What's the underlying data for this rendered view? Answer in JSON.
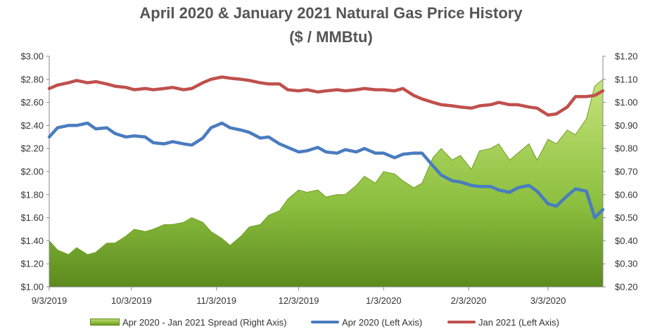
{
  "chart_data": {
    "type": "line",
    "title": "April 2020 & January 2021 Natural Gas Price History",
    "subtitle": "($ / MMBtu)",
    "x_type": "date",
    "x_tick_labels": [
      "9/3/2019",
      "10/3/2019",
      "11/3/2019",
      "12/3/2019",
      "1/3/2020",
      "2/3/2020",
      "3/3/2020"
    ],
    "x_tick_dates": [
      "2019-09-03",
      "2019-10-03",
      "2019-11-03",
      "2019-12-03",
      "2020-01-03",
      "2020-02-03",
      "2020-03-03"
    ],
    "xlim": [
      "2019-09-03",
      "2020-03-23"
    ],
    "left_axis": {
      "ylim": [
        1.0,
        3.0
      ],
      "tick_labels": [
        "$1.00",
        "$1.20",
        "$1.40",
        "$1.60",
        "$1.80",
        "$2.00",
        "$2.20",
        "$2.40",
        "$2.60",
        "$2.80",
        "$3.00"
      ],
      "tick_values": [
        1.0,
        1.2,
        1.4,
        1.6,
        1.8,
        2.0,
        2.2,
        2.4,
        2.6,
        2.8,
        3.0
      ]
    },
    "right_axis": {
      "ylim": [
        0.2,
        1.2
      ],
      "tick_labels": [
        "$0.20",
        "$0.30",
        "$0.40",
        "$0.50",
        "$0.60",
        "$0.70",
        "$0.80",
        "$0.90",
        "$1.00",
        "$1.10",
        "$1.20"
      ],
      "tick_values": [
        0.2,
        0.3,
        0.4,
        0.5,
        0.6,
        0.7,
        0.8,
        0.9,
        1.0,
        1.1,
        1.2
      ]
    },
    "grid": false,
    "legend_position": "bottom",
    "series": [
      {
        "name": "Apr 2020 - Jan 2021 Spread (Right Axis)",
        "type": "area",
        "axis": "right",
        "color": "#8cbf3f",
        "x": [
          "2019-09-03",
          "2019-09-06",
          "2019-09-10",
          "2019-09-13",
          "2019-09-17",
          "2019-09-20",
          "2019-09-24",
          "2019-09-27",
          "2019-10-01",
          "2019-10-04",
          "2019-10-08",
          "2019-10-11",
          "2019-10-15",
          "2019-10-18",
          "2019-10-22",
          "2019-10-25",
          "2019-10-29",
          "2019-11-01",
          "2019-11-05",
          "2019-11-08",
          "2019-11-12",
          "2019-11-15",
          "2019-11-19",
          "2019-11-22",
          "2019-11-26",
          "2019-11-29",
          "2019-12-03",
          "2019-12-06",
          "2019-12-10",
          "2019-12-13",
          "2019-12-17",
          "2019-12-20",
          "2019-12-24",
          "2019-12-27",
          "2019-12-31",
          "2020-01-03",
          "2020-01-07",
          "2020-01-10",
          "2020-01-14",
          "2020-01-17",
          "2020-01-21",
          "2020-01-24",
          "2020-01-28",
          "2020-01-31",
          "2020-02-04",
          "2020-02-07",
          "2020-02-11",
          "2020-02-14",
          "2020-02-18",
          "2020-02-21",
          "2020-02-25",
          "2020-02-28",
          "2020-03-03",
          "2020-03-06",
          "2020-03-10",
          "2020-03-13",
          "2020-03-17",
          "2020-03-20",
          "2020-03-23"
        ],
        "values": [
          0.4,
          0.36,
          0.34,
          0.37,
          0.34,
          0.35,
          0.39,
          0.39,
          0.42,
          0.45,
          0.44,
          0.45,
          0.47,
          0.47,
          0.48,
          0.5,
          0.48,
          0.44,
          0.41,
          0.38,
          0.42,
          0.46,
          0.47,
          0.51,
          0.53,
          0.58,
          0.62,
          0.61,
          0.62,
          0.59,
          0.6,
          0.6,
          0.64,
          0.68,
          0.65,
          0.7,
          0.69,
          0.66,
          0.63,
          0.65,
          0.76,
          0.8,
          0.75,
          0.77,
          0.71,
          0.79,
          0.8,
          0.82,
          0.75,
          0.78,
          0.82,
          0.75,
          0.84,
          0.82,
          0.88,
          0.86,
          0.93,
          1.07,
          1.1
        ],
        "display": "area"
      },
      {
        "name": "Apr 2020 (Left Axis)",
        "type": "line",
        "axis": "left",
        "color": "#4a7cbf",
        "x": [
          "2019-09-03",
          "2019-09-06",
          "2019-09-10",
          "2019-09-13",
          "2019-09-17",
          "2019-09-20",
          "2019-09-24",
          "2019-09-27",
          "2019-10-01",
          "2019-10-04",
          "2019-10-08",
          "2019-10-11",
          "2019-10-15",
          "2019-10-18",
          "2019-10-22",
          "2019-10-25",
          "2019-10-29",
          "2019-11-01",
          "2019-11-05",
          "2019-11-08",
          "2019-11-12",
          "2019-11-15",
          "2019-11-19",
          "2019-11-22",
          "2019-11-26",
          "2019-11-29",
          "2019-12-03",
          "2019-12-06",
          "2019-12-10",
          "2019-12-13",
          "2019-12-17",
          "2019-12-20",
          "2019-12-24",
          "2019-12-27",
          "2019-12-31",
          "2020-01-03",
          "2020-01-07",
          "2020-01-10",
          "2020-01-14",
          "2020-01-17",
          "2020-01-21",
          "2020-01-24",
          "2020-01-28",
          "2020-01-31",
          "2020-02-04",
          "2020-02-07",
          "2020-02-11",
          "2020-02-14",
          "2020-02-18",
          "2020-02-21",
          "2020-02-25",
          "2020-02-28",
          "2020-03-03",
          "2020-03-06",
          "2020-03-10",
          "2020-03-13",
          "2020-03-17",
          "2020-03-20",
          "2020-03-23"
        ],
        "values": [
          2.3,
          2.38,
          2.4,
          2.4,
          2.42,
          2.37,
          2.38,
          2.33,
          2.3,
          2.31,
          2.3,
          2.25,
          2.24,
          2.26,
          2.24,
          2.23,
          2.29,
          2.38,
          2.42,
          2.38,
          2.36,
          2.34,
          2.29,
          2.3,
          2.24,
          2.21,
          2.17,
          2.18,
          2.21,
          2.17,
          2.16,
          2.19,
          2.17,
          2.2,
          2.16,
          2.16,
          2.12,
          2.15,
          2.16,
          2.16,
          2.05,
          1.97,
          1.92,
          1.91,
          1.88,
          1.87,
          1.87,
          1.84,
          1.82,
          1.86,
          1.88,
          1.83,
          1.72,
          1.7,
          1.79,
          1.85,
          1.83,
          1.6,
          1.67
        ],
        "display": "line"
      },
      {
        "name": "Jan 2021 (Left Axis)",
        "type": "line",
        "axis": "left",
        "color": "#c0504d",
        "x": [
          "2019-09-03",
          "2019-09-06",
          "2019-09-10",
          "2019-09-13",
          "2019-09-17",
          "2019-09-20",
          "2019-09-24",
          "2019-09-27",
          "2019-10-01",
          "2019-10-04",
          "2019-10-08",
          "2019-10-11",
          "2019-10-15",
          "2019-10-18",
          "2019-10-22",
          "2019-10-25",
          "2019-10-29",
          "2019-11-01",
          "2019-11-05",
          "2019-11-08",
          "2019-11-12",
          "2019-11-15",
          "2019-11-19",
          "2019-11-22",
          "2019-11-26",
          "2019-11-29",
          "2019-12-03",
          "2019-12-06",
          "2019-12-10",
          "2019-12-13",
          "2019-12-17",
          "2019-12-20",
          "2019-12-24",
          "2019-12-27",
          "2019-12-31",
          "2020-01-03",
          "2020-01-07",
          "2020-01-10",
          "2020-01-14",
          "2020-01-17",
          "2020-01-21",
          "2020-01-24",
          "2020-01-28",
          "2020-01-31",
          "2020-02-04",
          "2020-02-07",
          "2020-02-11",
          "2020-02-14",
          "2020-02-18",
          "2020-02-21",
          "2020-02-25",
          "2020-02-28",
          "2020-03-03",
          "2020-03-06",
          "2020-03-10",
          "2020-03-13",
          "2020-03-17",
          "2020-03-20",
          "2020-03-23"
        ],
        "values": [
          2.72,
          2.75,
          2.77,
          2.79,
          2.77,
          2.78,
          2.76,
          2.74,
          2.73,
          2.71,
          2.72,
          2.71,
          2.72,
          2.73,
          2.71,
          2.72,
          2.77,
          2.8,
          2.82,
          2.81,
          2.8,
          2.79,
          2.77,
          2.76,
          2.76,
          2.71,
          2.7,
          2.71,
          2.69,
          2.7,
          2.71,
          2.7,
          2.71,
          2.72,
          2.71,
          2.71,
          2.7,
          2.72,
          2.66,
          2.63,
          2.6,
          2.58,
          2.57,
          2.56,
          2.55,
          2.57,
          2.58,
          2.6,
          2.58,
          2.58,
          2.56,
          2.55,
          2.49,
          2.5,
          2.56,
          2.65,
          2.65,
          2.66,
          2.7
        ],
        "display": "line"
      }
    ]
  }
}
